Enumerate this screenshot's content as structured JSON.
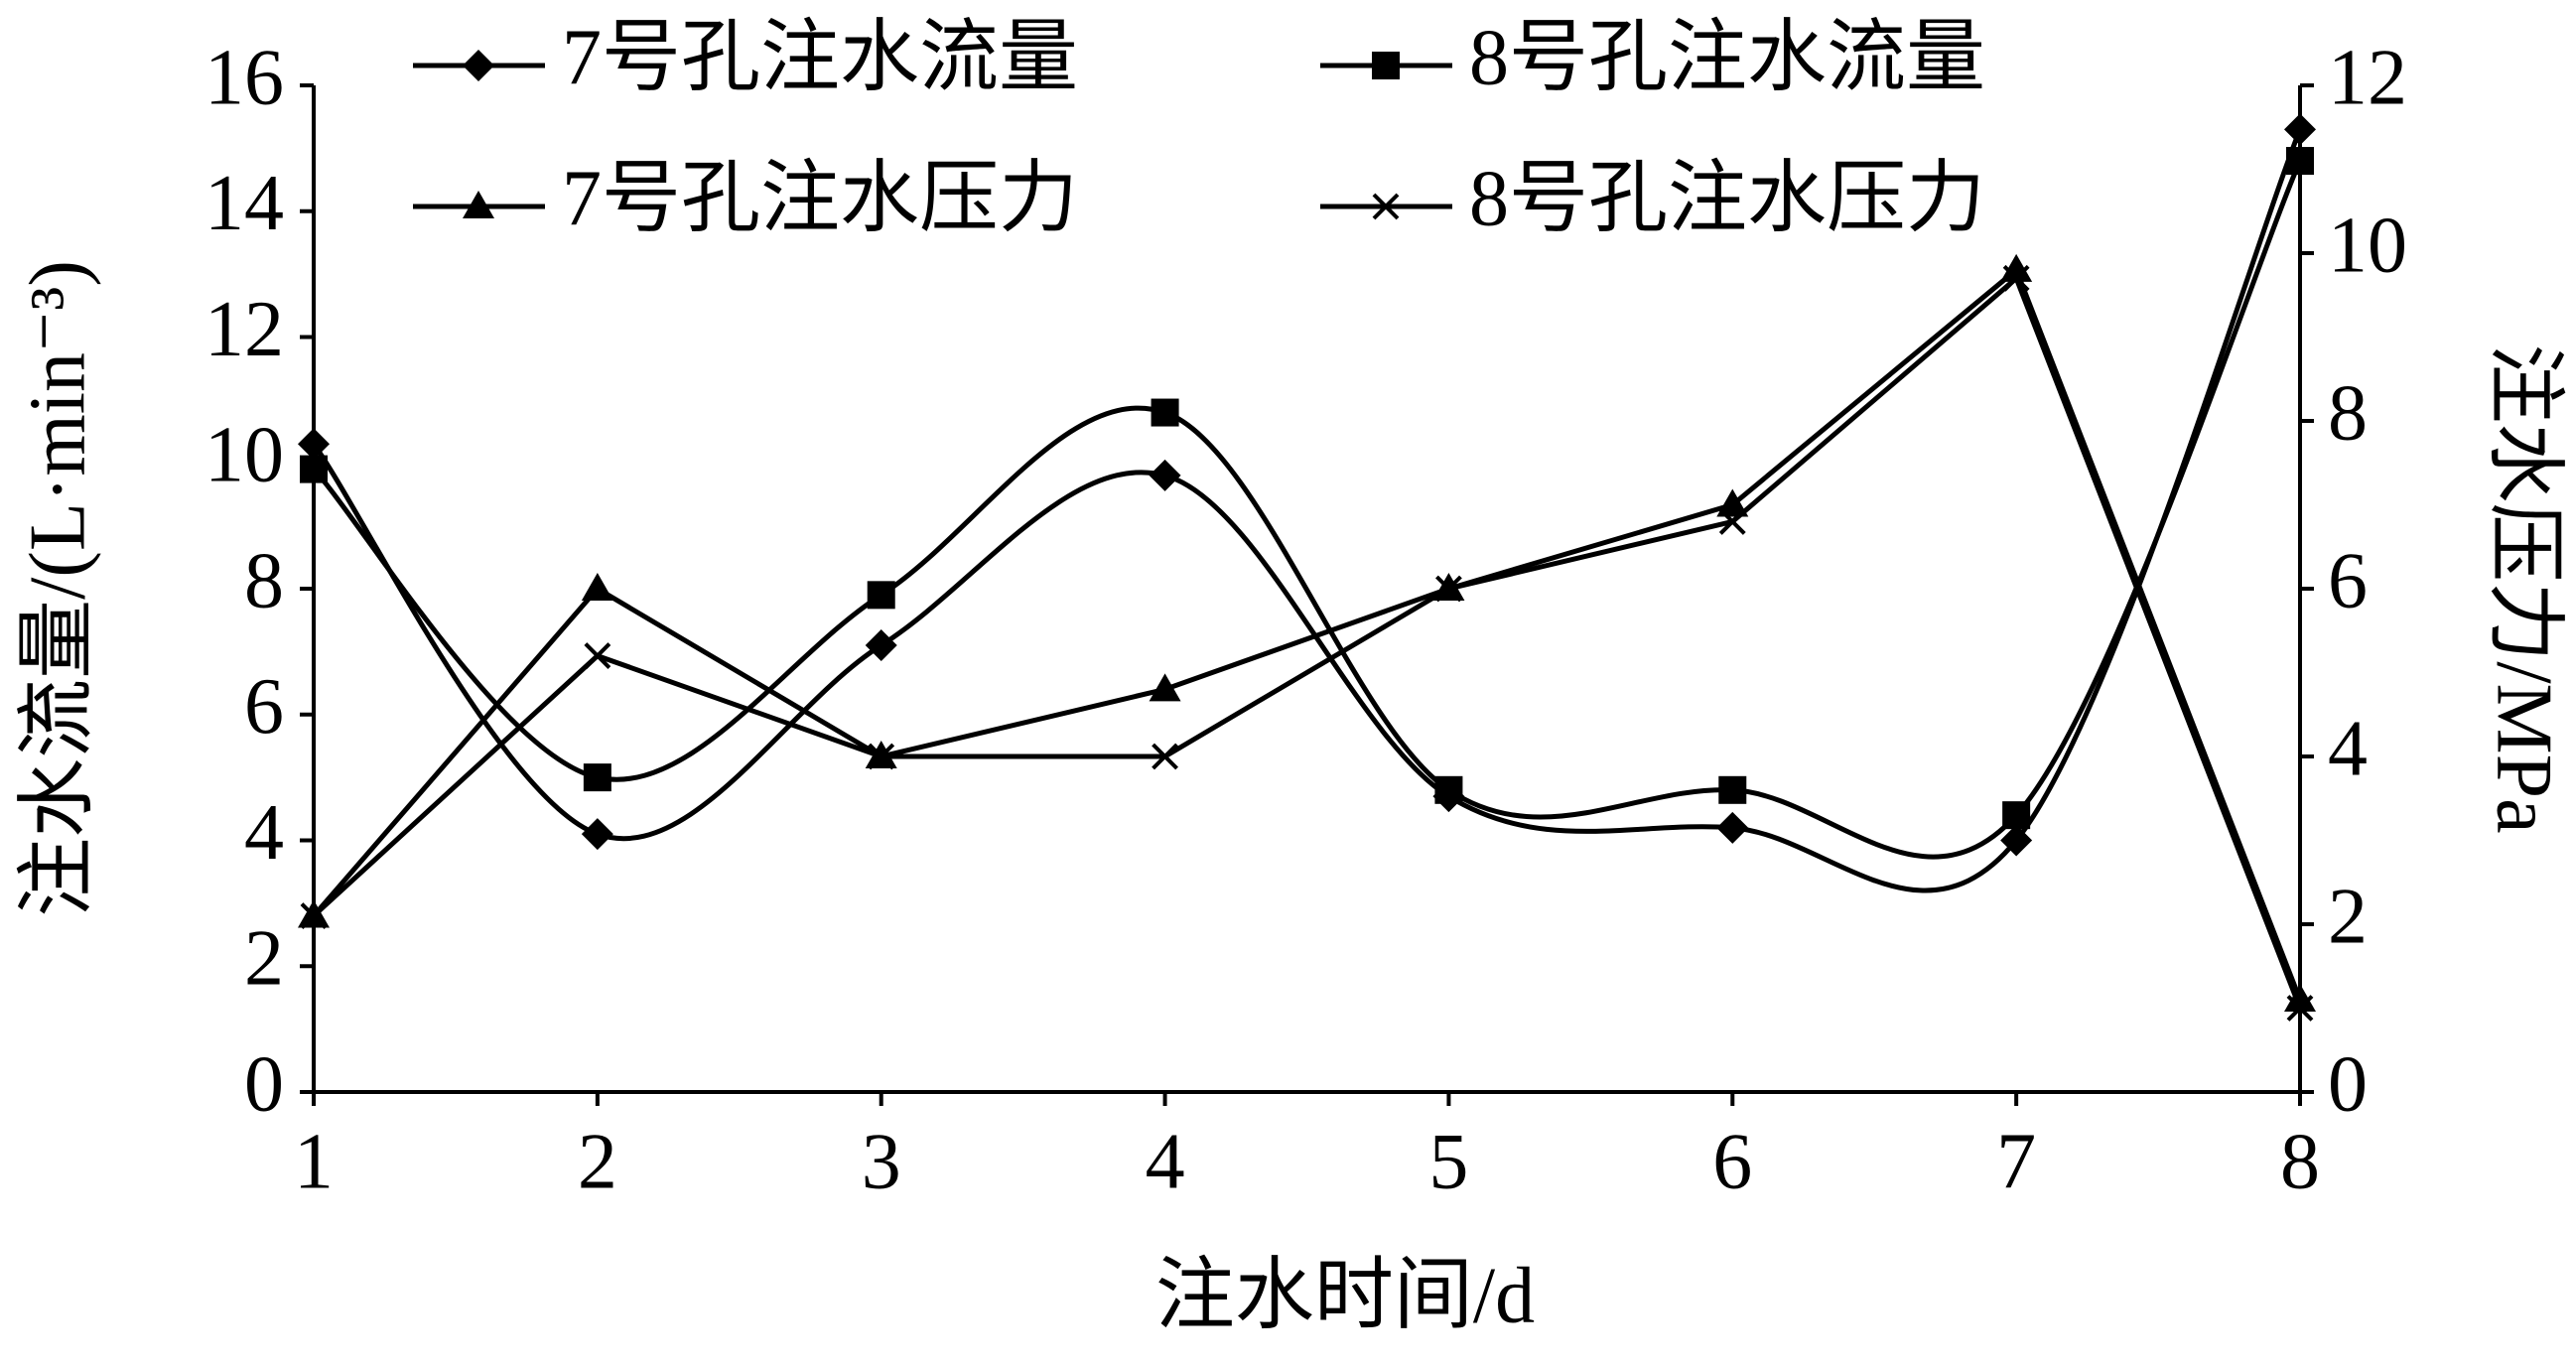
{
  "chart_data": {
    "type": "line",
    "x": [
      1,
      2,
      3,
      4,
      5,
      6,
      7,
      8
    ],
    "xlim": [
      1,
      8
    ],
    "xticks": [
      1,
      2,
      3,
      4,
      5,
      6,
      7,
      8
    ],
    "ylim": [
      0,
      16
    ],
    "yticks": [
      0,
      2,
      4,
      6,
      8,
      10,
      12,
      14,
      16
    ],
    "y2lim": [
      0,
      12
    ],
    "y2ticks": [
      0,
      2,
      4,
      6,
      8,
      10,
      12
    ],
    "xlabel": "注水时间/d",
    "ylabel": "注水流量/(L·min⁻³)",
    "y2label": "注水压力/MPa",
    "legend": "top",
    "series": [
      {
        "name": "7号孔注水流量",
        "color": "#000000",
        "marker": "diamond",
        "smooth": true,
        "values": [
          10.3,
          4.1,
          7.1,
          9.8,
          4.7,
          4.2,
          4.0,
          15.3
        ]
      },
      {
        "name": "8号孔注水流量",
        "color": "#000000",
        "marker": "square",
        "smooth": true,
        "values": [
          9.9,
          5.0,
          7.9,
          10.8,
          4.8,
          4.8,
          4.4,
          14.8
        ]
      },
      {
        "name": "7号孔注水压力",
        "color": "#000000",
        "marker": "triangle",
        "smooth": false,
        "axis": "y2",
        "values": [
          2.1,
          6.0,
          4.0,
          4.8,
          6.0,
          7.0,
          9.8,
          1.1
        ]
      },
      {
        "name": "8号孔注水压力",
        "color": "#000000",
        "marker": "x",
        "smooth": false,
        "axis": "y2",
        "values": [
          2.1,
          5.2,
          4.0,
          4.0,
          6.0,
          6.8,
          9.7,
          1.0
        ]
      }
    ]
  }
}
